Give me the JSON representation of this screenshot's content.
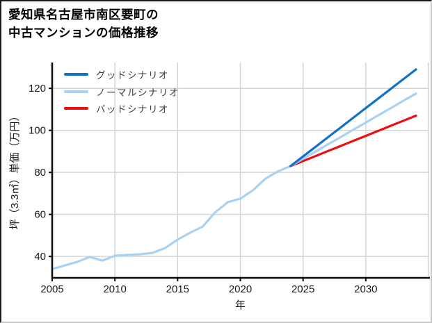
{
  "title": {
    "line1": "愛知県名古屋市南区要町の",
    "line2": "中古マンションの価格推移"
  },
  "legend": [
    {
      "label": "グッドシナリオ",
      "color": "#0f72c6"
    },
    {
      "label": "ノーマルシナリオ",
      "color": "#a8d2f4"
    },
    {
      "label": "バッドシナリオ",
      "color": "#ee0d0d"
    }
  ],
  "colors": {
    "good": "#0f72c6",
    "normal": "#a8d2f4",
    "bad": "#ee0d0d",
    "grid": "#d4d4d4",
    "spine": "#0a0a0a",
    "tick_text": "#1a1a1a",
    "legend_text": "#3d3d3d",
    "background": "#ffffff"
  },
  "chart_data": {
    "type": "line",
    "title": "愛知県名古屋市南区要町の中古マンションの価格推移",
    "xlabel": "年",
    "ylabel": "坪（3.3㎡）単価（万円）",
    "xlim": [
      2005,
      2035
    ],
    "ylim": [
      29.8,
      132.3
    ],
    "x_ticks": [
      2005,
      2010,
      2015,
      2020,
      2025,
      2030
    ],
    "y_ticks": [
      40,
      60,
      80,
      100,
      120
    ],
    "grid": true,
    "legend_position": "upper left",
    "series": [
      {
        "id": "good",
        "name": "グッドシナリオ",
        "color": "#0f72c6",
        "x": [
          2024,
          2025,
          2026,
          2027,
          2028,
          2029,
          2030,
          2031,
          2032,
          2033,
          2034
        ],
        "y": [
          83,
          87.6,
          92.2,
          96.8,
          101.4,
          106,
          110.6,
          115.2,
          119.8,
          124.4,
          129
        ]
      },
      {
        "id": "normal",
        "name": "ノーマルシナリオ",
        "color": "#a8d2f4",
        "x": [
          2005,
          2006,
          2007,
          2008,
          2009,
          2010,
          2011,
          2012,
          2013,
          2014,
          2015,
          2016,
          2017,
          2018,
          2019,
          2020,
          2021,
          2022,
          2023,
          2024,
          2025,
          2026,
          2027,
          2028,
          2029,
          2030,
          2031,
          2032,
          2033,
          2034
        ],
        "y": [
          34,
          35.7,
          37.4,
          39.8,
          38,
          40.3,
          40.7,
          41,
          41.7,
          44,
          48,
          51.3,
          54.2,
          61,
          65.8,
          67.5,
          71.5,
          77,
          80.5,
          83,
          86.5,
          89.9,
          93.4,
          96.8,
          100.3,
          103.7,
          107.2,
          110.6,
          114.1,
          117.5
        ]
      },
      {
        "id": "bad",
        "name": "バッドシナリオ",
        "color": "#ee0d0d",
        "x": [
          2024,
          2025,
          2026,
          2027,
          2028,
          2029,
          2030,
          2031,
          2032,
          2033,
          2034
        ],
        "y": [
          83,
          85.4,
          87.8,
          90.2,
          92.6,
          95,
          97.4,
          99.8,
          102.2,
          104.6,
          107
        ]
      }
    ]
  }
}
